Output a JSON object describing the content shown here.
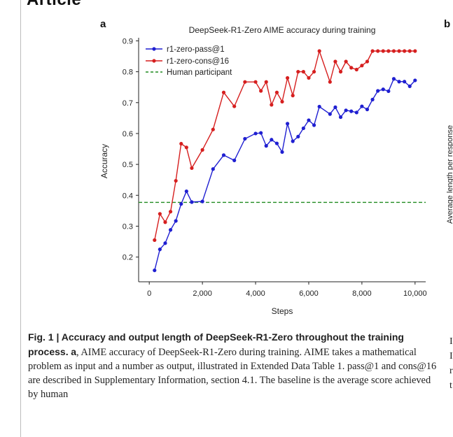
{
  "header": {
    "title": "Article"
  },
  "panels": {
    "a": "a",
    "b": "b"
  },
  "panel_b": {
    "ylabel": "Average length per response",
    "caption_letters": [
      "I",
      "I",
      "r",
      "t"
    ]
  },
  "caption": {
    "bold": "Fig. 1 | Accuracy and output length of DeepSeek-R1-Zero throughout the training process.",
    "panel_ref": "a",
    "text": ", AIME accuracy of DeepSeek-R1-Zero during training. AIME takes a mathematical problem as input and a number as output, illustrated in Extended Data Table 1. pass@1 and cons@16 are described in Supplementary Information, section 4.1. The baseline is the average score achieved by human"
  },
  "chart_data": {
    "type": "line",
    "title": "DeepSeek-R1-Zero AIME accuracy during training",
    "xlabel": "Steps",
    "ylabel": "Accuracy",
    "xlim": [
      -400,
      10400
    ],
    "ylim": [
      0.12,
      0.91
    ],
    "xticks": [
      0,
      2000,
      4000,
      6000,
      8000,
      10000
    ],
    "xtick_labels": [
      "0",
      "2,000",
      "4,000",
      "6,000",
      "8,000",
      "10,000"
    ],
    "yticks": [
      0.2,
      0.3,
      0.4,
      0.5,
      0.6,
      0.7,
      0.8,
      0.9
    ],
    "ytick_labels": [
      "0.2",
      "0.3",
      "0.4",
      "0.5",
      "0.6",
      "0.7",
      "0.8",
      "0.9"
    ],
    "legend_position": "top-left",
    "series": [
      {
        "name": "r1-zero-pass@1",
        "color": "#1f1fd1",
        "x": [
          200,
          400,
          600,
          800,
          1000,
          1200,
          1400,
          1600,
          2000,
          2400,
          2800,
          3200,
          3600,
          4000,
          4200,
          4400,
          4600,
          4800,
          5000,
          5200,
          5400,
          5600,
          5800,
          6000,
          6200,
          6400,
          6800,
          7000,
          7200,
          7400,
          7600,
          7800,
          8000,
          8200,
          8400,
          8600,
          8800,
          9000,
          9200,
          9400,
          9600,
          9800,
          10000
        ],
        "y": [
          0.157,
          0.225,
          0.245,
          0.288,
          0.317,
          0.372,
          0.413,
          0.378,
          0.38,
          0.485,
          0.53,
          0.513,
          0.583,
          0.6,
          0.602,
          0.56,
          0.58,
          0.568,
          0.54,
          0.632,
          0.575,
          0.59,
          0.617,
          0.643,
          0.627,
          0.687,
          0.663,
          0.685,
          0.653,
          0.675,
          0.672,
          0.668,
          0.688,
          0.678,
          0.71,
          0.738,
          0.743,
          0.737,
          0.777,
          0.768,
          0.768,
          0.753,
          0.772
        ]
      },
      {
        "name": "r1-zero-cons@16",
        "color": "#d61f1f",
        "x": [
          200,
          400,
          600,
          800,
          1000,
          1200,
          1400,
          1600,
          2000,
          2400,
          2800,
          3200,
          3600,
          4000,
          4200,
          4400,
          4600,
          4800,
          5000,
          5200,
          5400,
          5600,
          5800,
          6000,
          6200,
          6400,
          6800,
          7000,
          7200,
          7400,
          7600,
          7800,
          8000,
          8200,
          8400,
          8600,
          8800,
          9000,
          9200,
          9400,
          9600,
          9800,
          10000
        ],
        "y": [
          0.255,
          0.34,
          0.313,
          0.347,
          0.447,
          0.567,
          0.555,
          0.488,
          0.547,
          0.613,
          0.733,
          0.688,
          0.767,
          0.767,
          0.738,
          0.767,
          0.693,
          0.733,
          0.703,
          0.78,
          0.723,
          0.8,
          0.8,
          0.78,
          0.8,
          0.867,
          0.767,
          0.833,
          0.8,
          0.833,
          0.813,
          0.807,
          0.82,
          0.833,
          0.867,
          0.867,
          0.867,
          0.867,
          0.867,
          0.867,
          0.867,
          0.867,
          0.867
        ]
      }
    ],
    "reference_line": {
      "name": "Human participant",
      "y": 0.377,
      "color": "#1f8a1f",
      "style": "dashed"
    }
  }
}
